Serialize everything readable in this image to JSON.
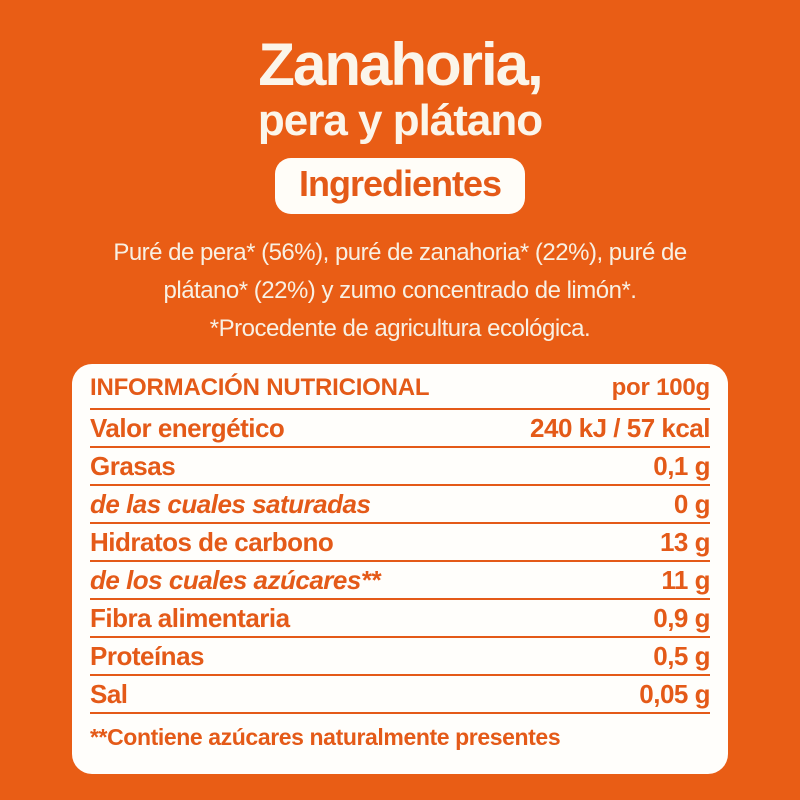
{
  "colors": {
    "background": "#E95D15",
    "accent": "#E45A18",
    "card_background": "#FFFEFB",
    "title_text": "#FBF5EA",
    "paragraph_text": "#F8F0E3"
  },
  "header": {
    "title_line1": "Zanahoria,",
    "title_line2": "pera y plátano",
    "badge": "Ingredientes"
  },
  "ingredients": {
    "lines": [
      "Puré de pera* (56%), puré de zanahoria* (22%), puré de",
      "plátano* (22%) y zumo concentrado de limón*.",
      "*Procedente de agricultura ecológica."
    ]
  },
  "nutrition": {
    "header": {
      "label": "INFORMACIÓN NUTRICIONAL",
      "value": "por 100g"
    },
    "rows": [
      {
        "label": "Valor energético",
        "value": "240 kJ / 57 kcal",
        "italic": false
      },
      {
        "label": "Grasas",
        "value": "0,1 g",
        "italic": false
      },
      {
        "label": "de las cuales saturadas",
        "value": "0 g",
        "italic": true
      },
      {
        "label": "Hidratos de carbono",
        "value": "13 g",
        "italic": false
      },
      {
        "label": "de los cuales azúcares**",
        "value": "11 g",
        "italic": true
      },
      {
        "label": "Fibra alimentaria",
        "value": "0,9 g",
        "italic": false
      },
      {
        "label": "Proteínas",
        "value": "0,5 g",
        "italic": false
      },
      {
        "label": "Sal",
        "value": "0,05 g",
        "italic": false
      }
    ],
    "footnote": "**Contiene azúcares naturalmente presentes"
  }
}
